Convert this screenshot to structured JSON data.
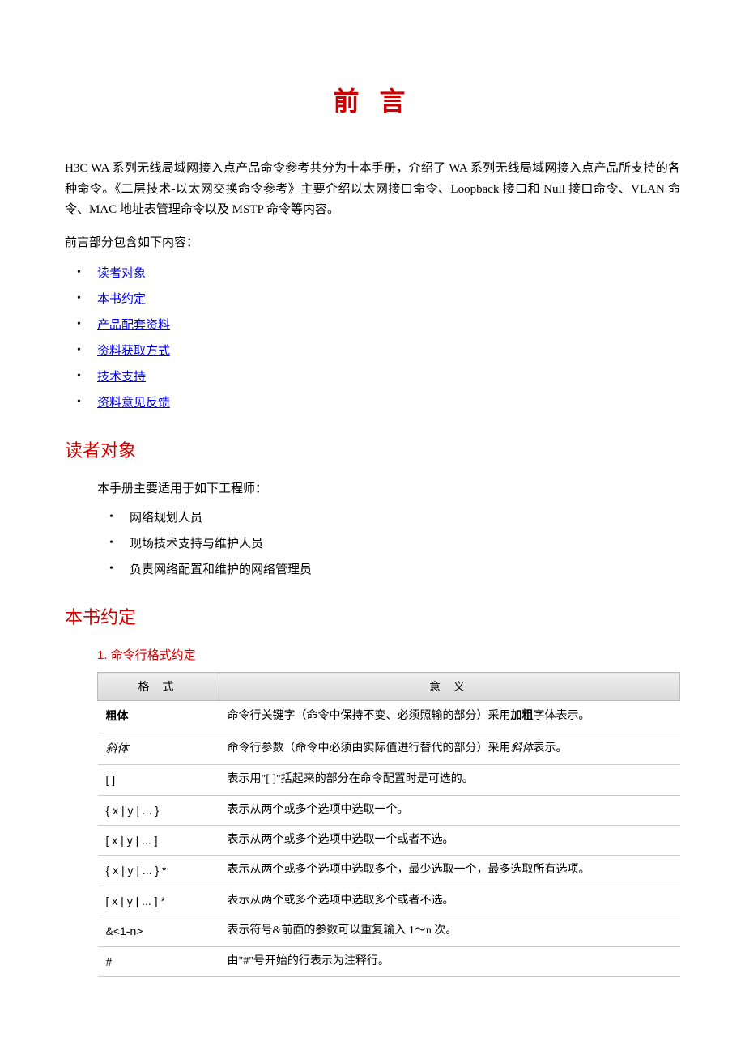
{
  "title": "前 言",
  "intro": "H3C WA 系列无线局域网接入点产品命令参考共分为十本手册，介绍了 WA 系列无线局域网接入点产品所支持的各种命令。《二层技术-以太网交换命令参考》主要介绍以太网接口命令、Loopback 接口和 Null 接口命令、VLAN 命令、MAC 地址表管理命令以及 MSTP 命令等内容。",
  "sub_intro": "前言部分包含如下内容：",
  "toc": {
    "items": [
      "读者对象",
      "本书约定",
      "产品配套资料",
      "资料获取方式",
      "技术支持",
      "资料意见反馈"
    ]
  },
  "audience": {
    "heading": "读者对象",
    "intro": "本手册主要适用于如下工程师：",
    "items": [
      "网络规划人员",
      "现场技术支持与维护人员",
      "负责网络配置和维护的网络管理员"
    ]
  },
  "conventions": {
    "heading": "本书约定",
    "table_title": "1. 命令行格式约定",
    "columns": [
      "格 式",
      "意 义"
    ],
    "rows": [
      {
        "fmt": "粗体",
        "fmt_class": "fmt-bold",
        "desc_pre": "命令行关键字（命令中保持不变、必须照输的部分）采用",
        "desc_em": "加粗",
        "desc_em_class": "inline-bold",
        "desc_post": "字体表示。"
      },
      {
        "fmt": "斜体",
        "fmt_class": "fmt-italic",
        "desc_pre": "命令行参数（命令中必须由实际值进行替代的部分）采用",
        "desc_em": "斜体",
        "desc_em_class": "inline-italic",
        "desc_post": "表示。"
      },
      {
        "fmt": "[ ]",
        "fmt_class": "",
        "desc_pre": "表示用\"[ ]\"括起来的部分在命令配置时是可选的。",
        "desc_em": "",
        "desc_em_class": "",
        "desc_post": ""
      },
      {
        "fmt": "{ x | y | ... }",
        "fmt_class": "",
        "desc_pre": "表示从两个或多个选项中选取一个。",
        "desc_em": "",
        "desc_em_class": "",
        "desc_post": ""
      },
      {
        "fmt": "[ x | y | ... ]",
        "fmt_class": "",
        "desc_pre": "表示从两个或多个选项中选取一个或者不选。",
        "desc_em": "",
        "desc_em_class": "",
        "desc_post": ""
      },
      {
        "fmt": "{ x | y | ... } *",
        "fmt_class": "",
        "desc_pre": "表示从两个或多个选项中选取多个，最少选取一个，最多选取所有选项。",
        "desc_em": "",
        "desc_em_class": "",
        "desc_post": ""
      },
      {
        "fmt": "[ x | y | ... ] *",
        "fmt_class": "",
        "desc_pre": "表示从两个或多个选项中选取多个或者不选。",
        "desc_em": "",
        "desc_em_class": "",
        "desc_post": ""
      },
      {
        "fmt": "&<1-n>",
        "fmt_class": "",
        "desc_pre": "表示符号&前面的参数可以重复输入 1～n 次。",
        "desc_em": "",
        "desc_em_class": "",
        "desc_post": ""
      },
      {
        "fmt": "#",
        "fmt_class": "",
        "desc_pre": "由\"#\"号开始的行表示为注释行。",
        "desc_em": "",
        "desc_em_class": "",
        "desc_post": ""
      }
    ]
  },
  "colors": {
    "accent": "#cc0000",
    "link": "#0000ee",
    "border": "#cccccc",
    "header_bg_start": "#f0f0f0",
    "header_bg_end": "#d8d8d8"
  }
}
